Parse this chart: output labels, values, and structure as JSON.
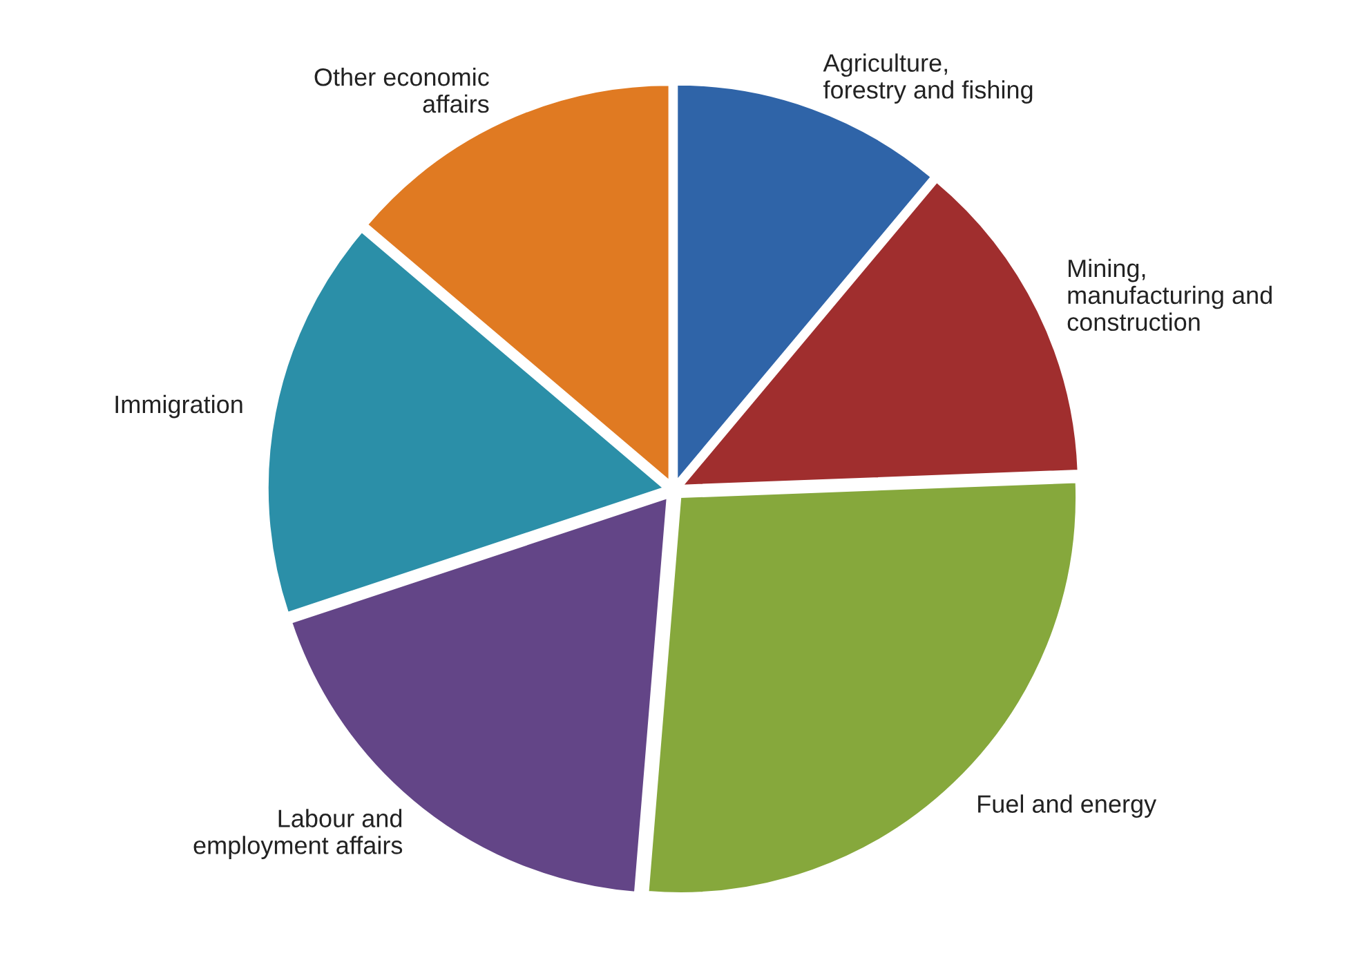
{
  "chart_data": {
    "type": "pie",
    "categories": [
      "Agriculture,\nforestry and fishing",
      "Mining,\nmanufacturing and\nconstruction",
      "Fuel and energy",
      "Labour and\nemployment affairs",
      "Immigration",
      "Other economic\naffairs"
    ],
    "values": [
      11.1,
      13.3,
      26.9,
      18.6,
      16.3,
      13.8
    ],
    "colors": [
      "#2f64a8",
      "#a02e2e",
      "#86a83c",
      "#634587",
      "#2b8fa8",
      "#e07a22"
    ]
  }
}
